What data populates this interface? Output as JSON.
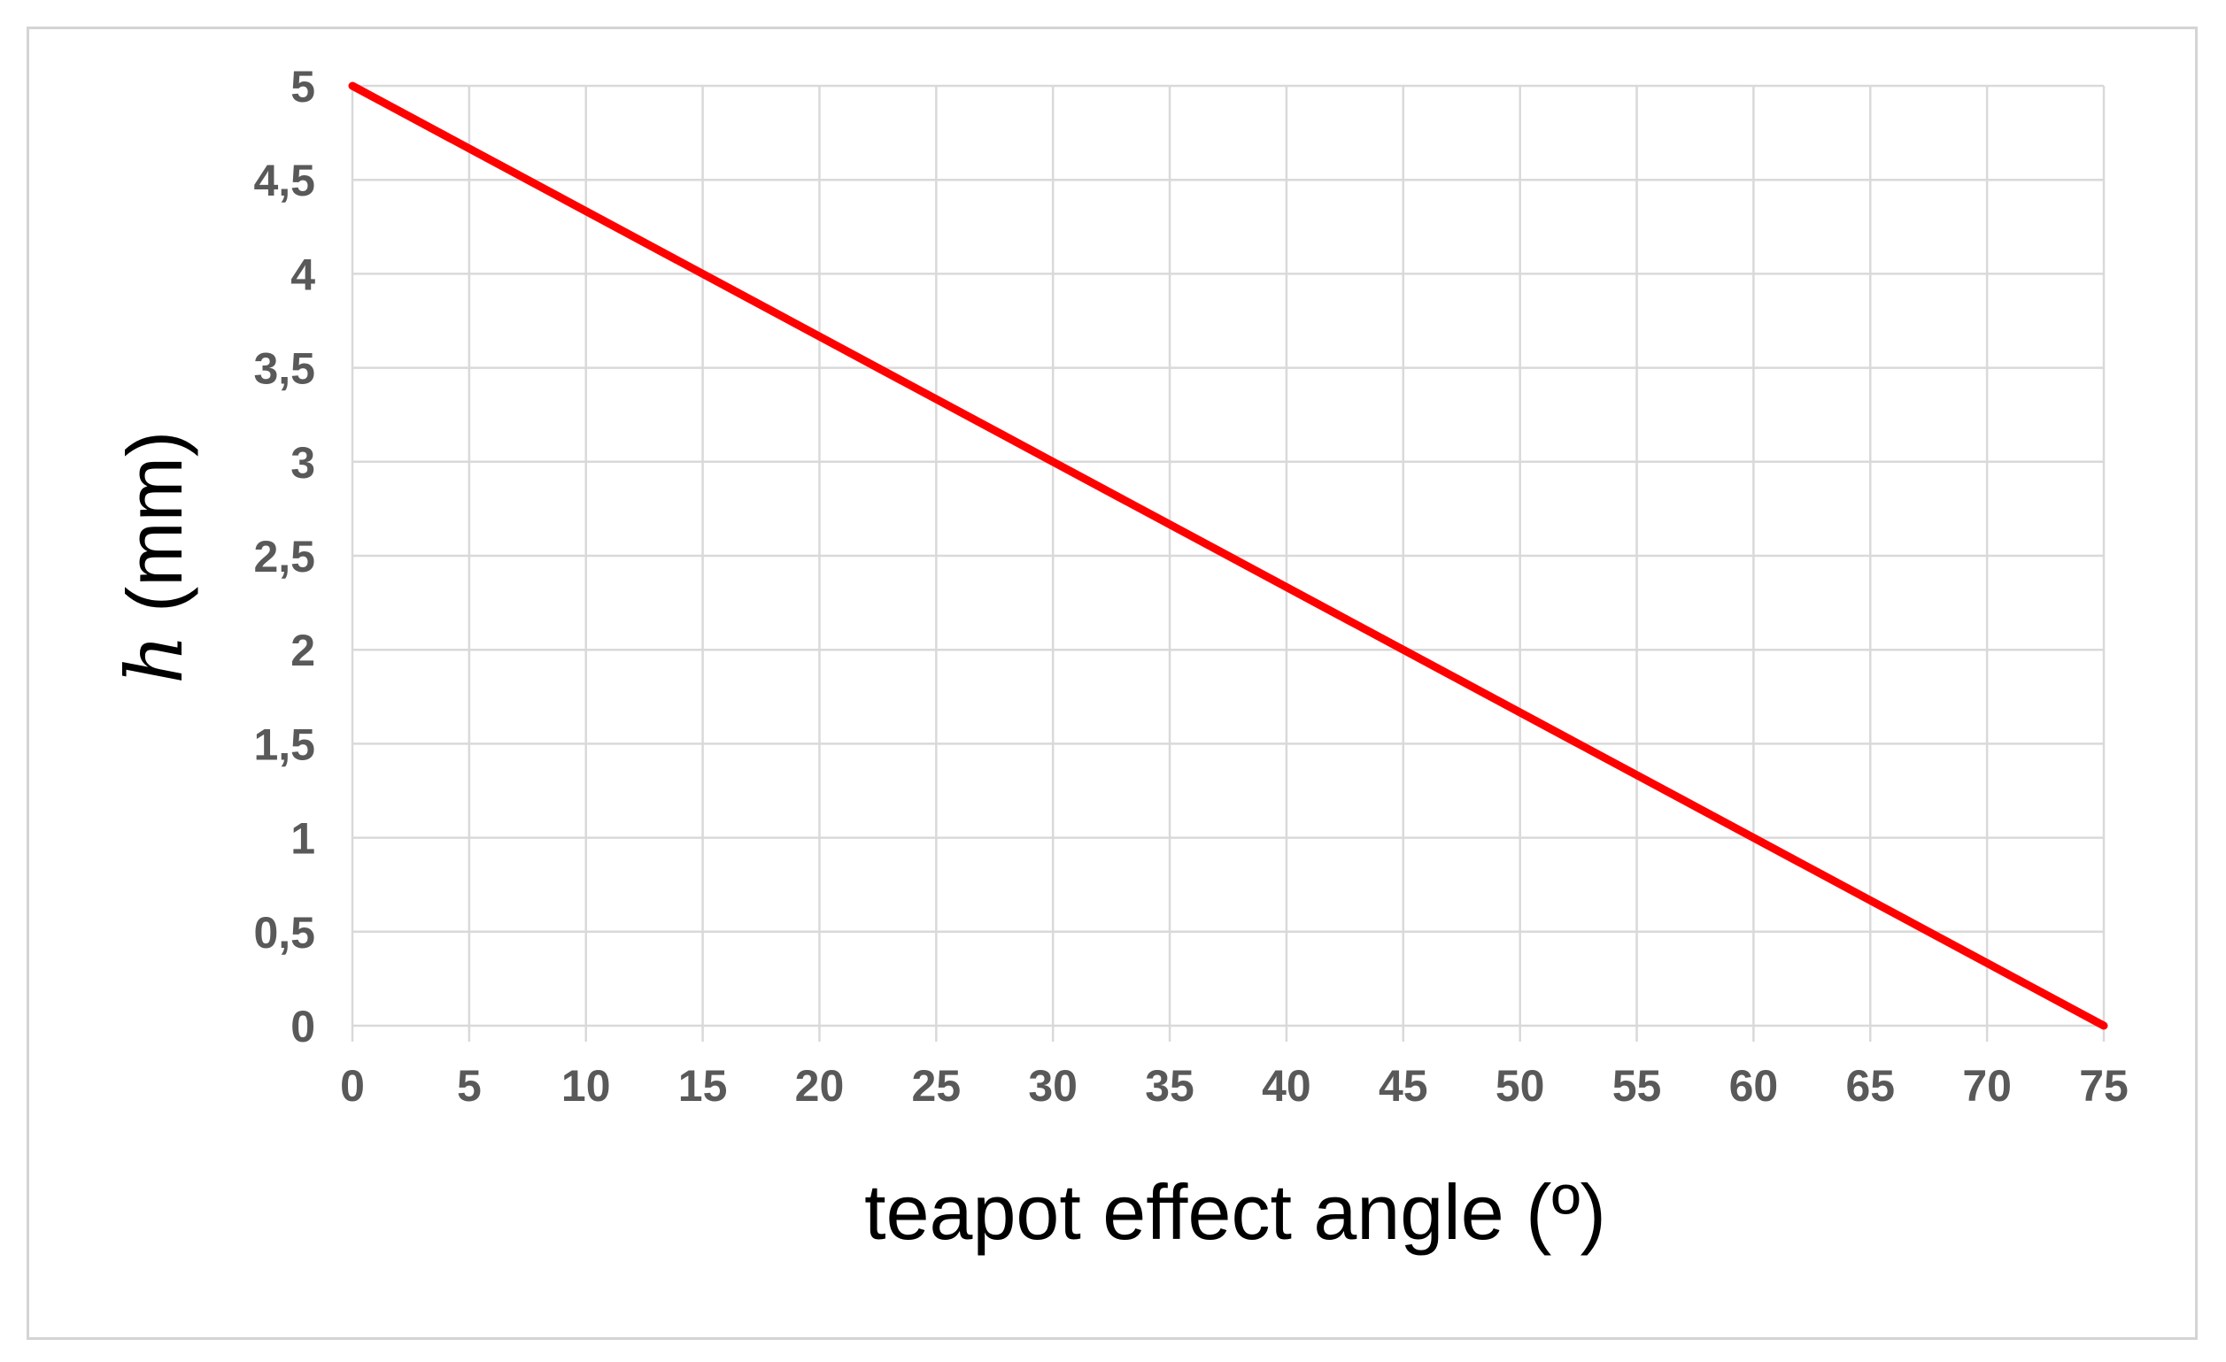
{
  "chart_data": {
    "type": "line",
    "xlabel": "teapot effect angle (º)",
    "ylabel": {
      "variable": "h",
      "unit": " (mm)"
    },
    "xlim": [
      0,
      75
    ],
    "ylim": [
      0,
      5
    ],
    "x_ticks": [
      "0",
      "5",
      "10",
      "15",
      "20",
      "25",
      "30",
      "35",
      "40",
      "45",
      "50",
      "55",
      "60",
      "65",
      "70",
      "75"
    ],
    "y_ticks": [
      "0",
      "0,5",
      "1",
      "1,5",
      "2",
      "2,5",
      "3",
      "3,5",
      "4",
      "4,5",
      "5"
    ],
    "grid": true,
    "legend": "none",
    "series": [
      {
        "color": "#ff0000",
        "x": [
          0,
          75
        ],
        "y": [
          5,
          0
        ]
      }
    ]
  },
  "colors": {
    "grid": "#d9d9d9",
    "tick_label": "#595959",
    "frame": "#d4d4d4"
  }
}
